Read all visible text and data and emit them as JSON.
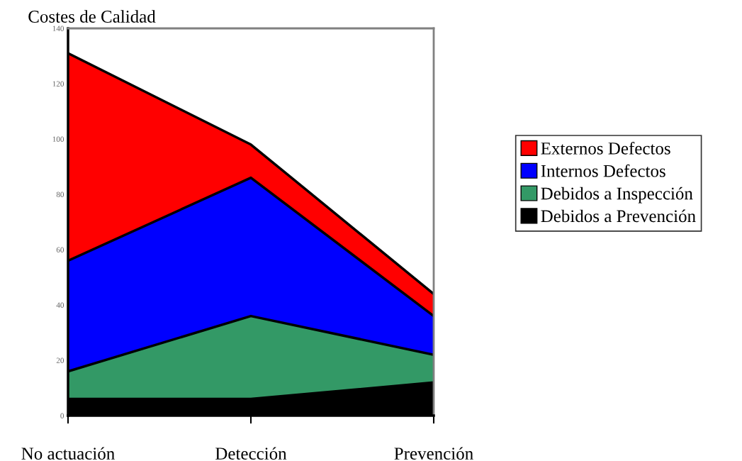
{
  "chart_data": {
    "type": "area",
    "title": "Costes de Calidad",
    "stacked": true,
    "categories": [
      "No actuación",
      "Detección",
      "Prevención"
    ],
    "series": [
      {
        "name": "Debidos a Prevención",
        "color": "#000000",
        "values": [
          6,
          6,
          12
        ]
      },
      {
        "name": "Debidos a Inspección",
        "color": "#339966",
        "values": [
          10,
          30,
          10
        ]
      },
      {
        "name": "Internos Defectos",
        "color": "#0000ff",
        "values": [
          40,
          50,
          14
        ]
      },
      {
        "name": "Externos Defectos",
        "color": "#ff0000",
        "values": [
          75,
          12,
          8
        ]
      }
    ],
    "ylim": [
      0,
      140
    ],
    "yticks": [
      0,
      20,
      40,
      60,
      80,
      100,
      120,
      140
    ],
    "grid": false,
    "legend": "right"
  }
}
